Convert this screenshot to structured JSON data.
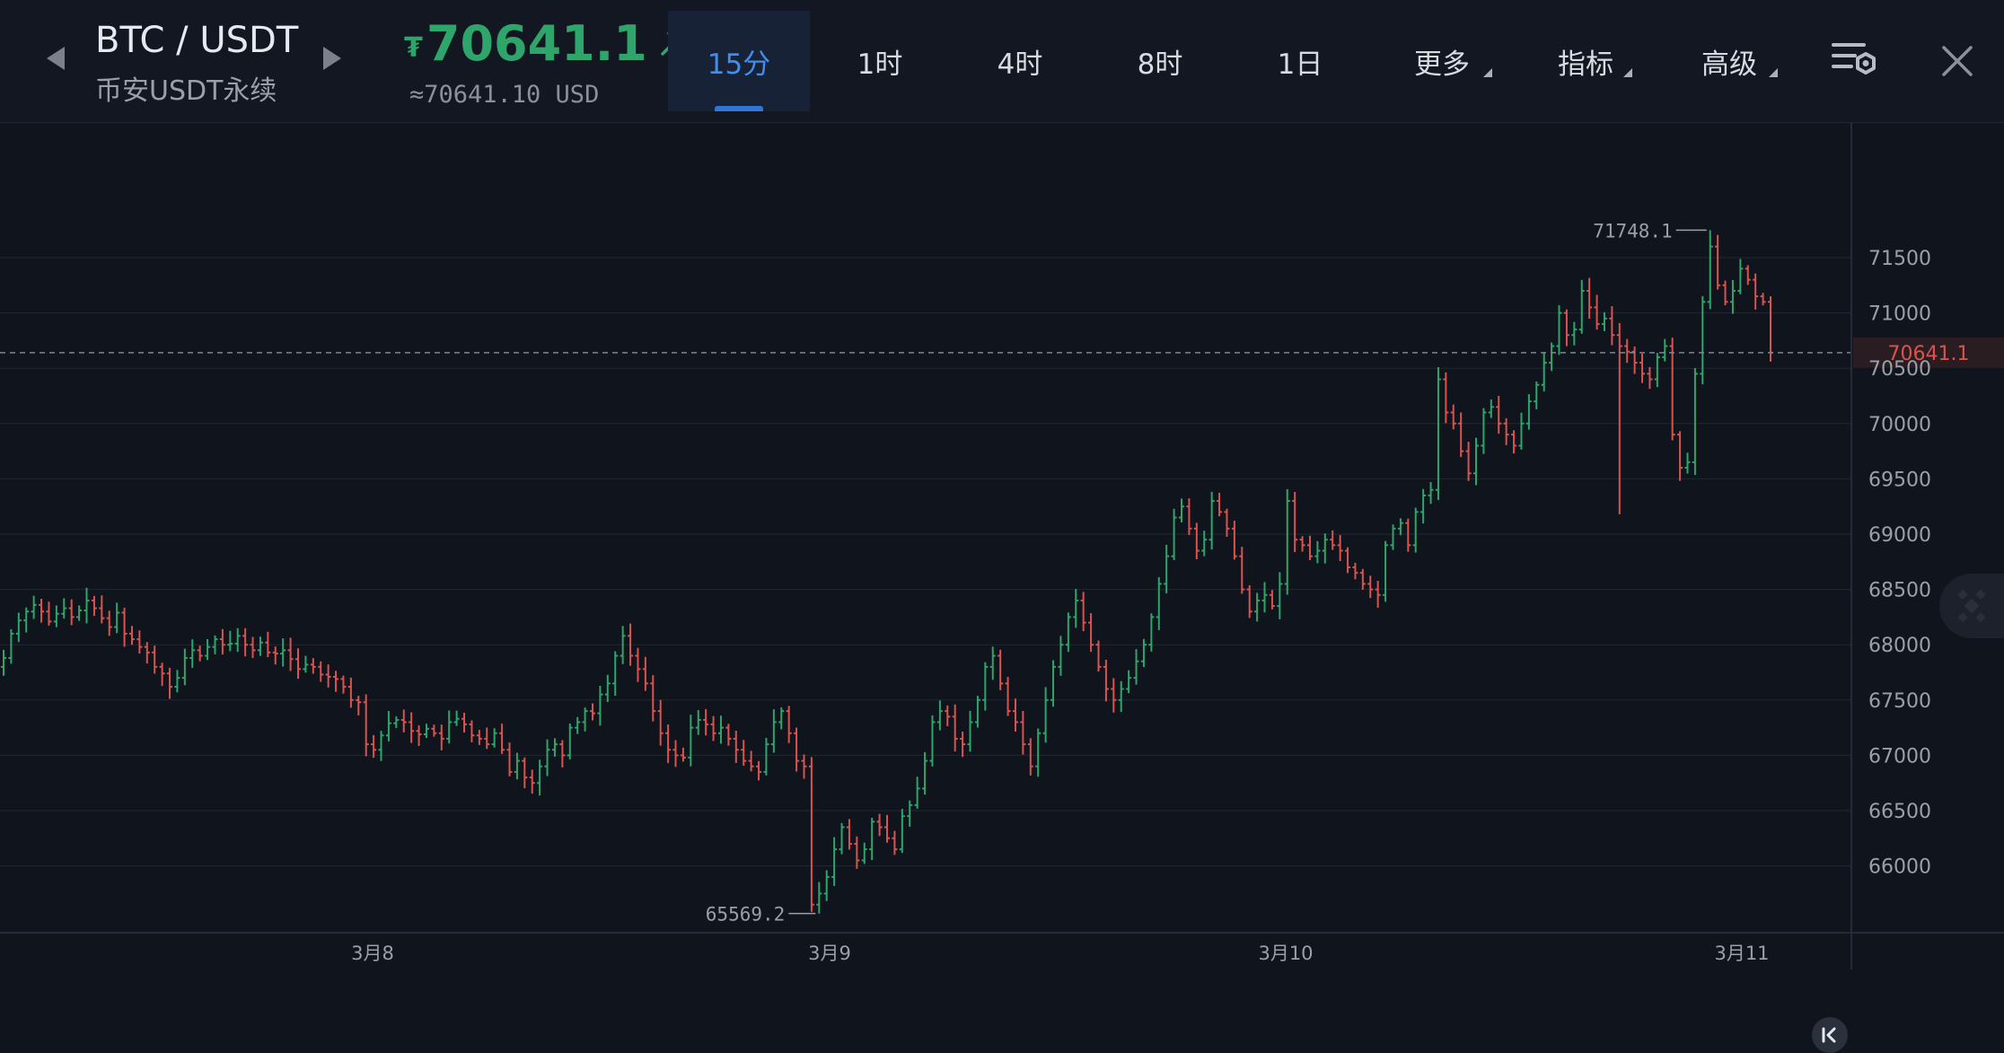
{
  "header": {
    "pair": "BTC / USDT",
    "exchange": "币安USDT永续",
    "price_symbol": "₮",
    "price": "70641.1",
    "price_usd": "≈70641.10 USD"
  },
  "tabs": [
    {
      "label": "15分",
      "active": true
    },
    {
      "label": "1时",
      "active": false
    },
    {
      "label": "4时",
      "active": false
    },
    {
      "label": "8时",
      "active": false
    },
    {
      "label": "1日",
      "active": false
    },
    {
      "label": "更多",
      "dropdown": true
    },
    {
      "label": "指标",
      "dropdown": true
    },
    {
      "label": "高级",
      "dropdown": true
    }
  ],
  "icons": {
    "prev": "chevron-left-icon",
    "next": "chevron-right-icon",
    "trend": "arrow-up-right-icon",
    "settings": "chart-settings-icon",
    "close": "close-icon",
    "collapse": "collapse-left-icon",
    "watermark": "binance-logo-icon"
  },
  "colors": {
    "up": "#2ea56a",
    "down": "#d9534f",
    "accent": "#3f8ef0",
    "background": "#10141d",
    "grid": "#222734",
    "axis_text": "#9aa0aa"
  },
  "chart_data": {
    "type": "ohlc",
    "interval": "15分",
    "ylim": [
      65300,
      72300
    ],
    "y_ticks": [
      66000,
      66500,
      67000,
      67500,
      68000,
      68500,
      69000,
      69500,
      70000,
      70500,
      71000,
      71500
    ],
    "x_ticks": [
      "3月8",
      "3月9",
      "3月10",
      "3月11"
    ],
    "last_price": "70641.1",
    "high_label": "71748.1",
    "low_label": "65569.2",
    "grid": true,
    "approx_closes": [
      67880,
      68100,
      68220,
      68300,
      68360,
      68300,
      68210,
      68280,
      68330,
      68250,
      68310,
      68400,
      68330,
      68240,
      68160,
      68290,
      68100,
      68050,
      67980,
      67930,
      67800,
      67740,
      67620,
      67700,
      67880,
      67950,
      67900,
      67980,
      68050,
      68000,
      68010,
      68080,
      68000,
      67950,
      68020,
      67930,
      67920,
      67950,
      67870,
      67780,
      67820,
      67800,
      67730,
      67710,
      67690,
      67620,
      67500,
      67480,
      67100,
      67050,
      67180,
      67290,
      67320,
      67300,
      67220,
      67190,
      67240,
      67200,
      67150,
      67300,
      67330,
      67280,
      67180,
      67150,
      67100,
      67200,
      67050,
      66850,
      66950,
      66800,
      66750,
      66900,
      67050,
      67100,
      67000,
      67250,
      67300,
      67400,
      67380,
      67550,
      67650,
      67900,
      68080,
      67900,
      67780,
      67650,
      67400,
      67200,
      67050,
      67000,
      66980,
      67250,
      67320,
      67280,
      67200,
      67250,
      67150,
      67050,
      66950,
      66900,
      66850,
      67100,
      67300,
      67400,
      67200,
      66950,
      66900,
      65650,
      65750,
      65900,
      66150,
      66350,
      66200,
      66050,
      66150,
      66400,
      66350,
      66250,
      66150,
      66450,
      66550,
      66700,
      66950,
      67300,
      67400,
      67350,
      67150,
      67100,
      67300,
      67500,
      67800,
      67900,
      67650,
      67400,
      67300,
      67100,
      66900,
      67200,
      67500,
      67800,
      68000,
      68250,
      68400,
      68200,
      68000,
      67800,
      67600,
      67500,
      67600,
      67700,
      67850,
      68000,
      68250,
      68550,
      68800,
      69150,
      69250,
      69050,
      68850,
      68950,
      69300,
      69200,
      69050,
      68800,
      68500,
      68300,
      68400,
      68450,
      68350,
      68550,
      69300,
      68950,
      68900,
      68800,
      68850,
      68950,
      68900,
      68850,
      68700,
      68650,
      68550,
      68500,
      68450,
      68900,
      69050,
      69100,
      68900,
      69200,
      69350,
      69400,
      70400,
      70100,
      70000,
      69750,
      69550,
      69800,
      70100,
      70150,
      70000,
      69900,
      69800,
      70000,
      70200,
      70350,
      70550,
      70700,
      71000,
      70800,
      70850,
      71200,
      71050,
      70900,
      70950,
      70800,
      70700,
      70650,
      70550,
      70450,
      70400,
      70600,
      70700,
      69900,
      69600,
      69650,
      70450,
      71100,
      71600,
      71250,
      71100,
      71200,
      71400,
      71300,
      71150,
      71100,
      70641.1
    ]
  },
  "axis": {
    "price_tag": "70641.1"
  }
}
